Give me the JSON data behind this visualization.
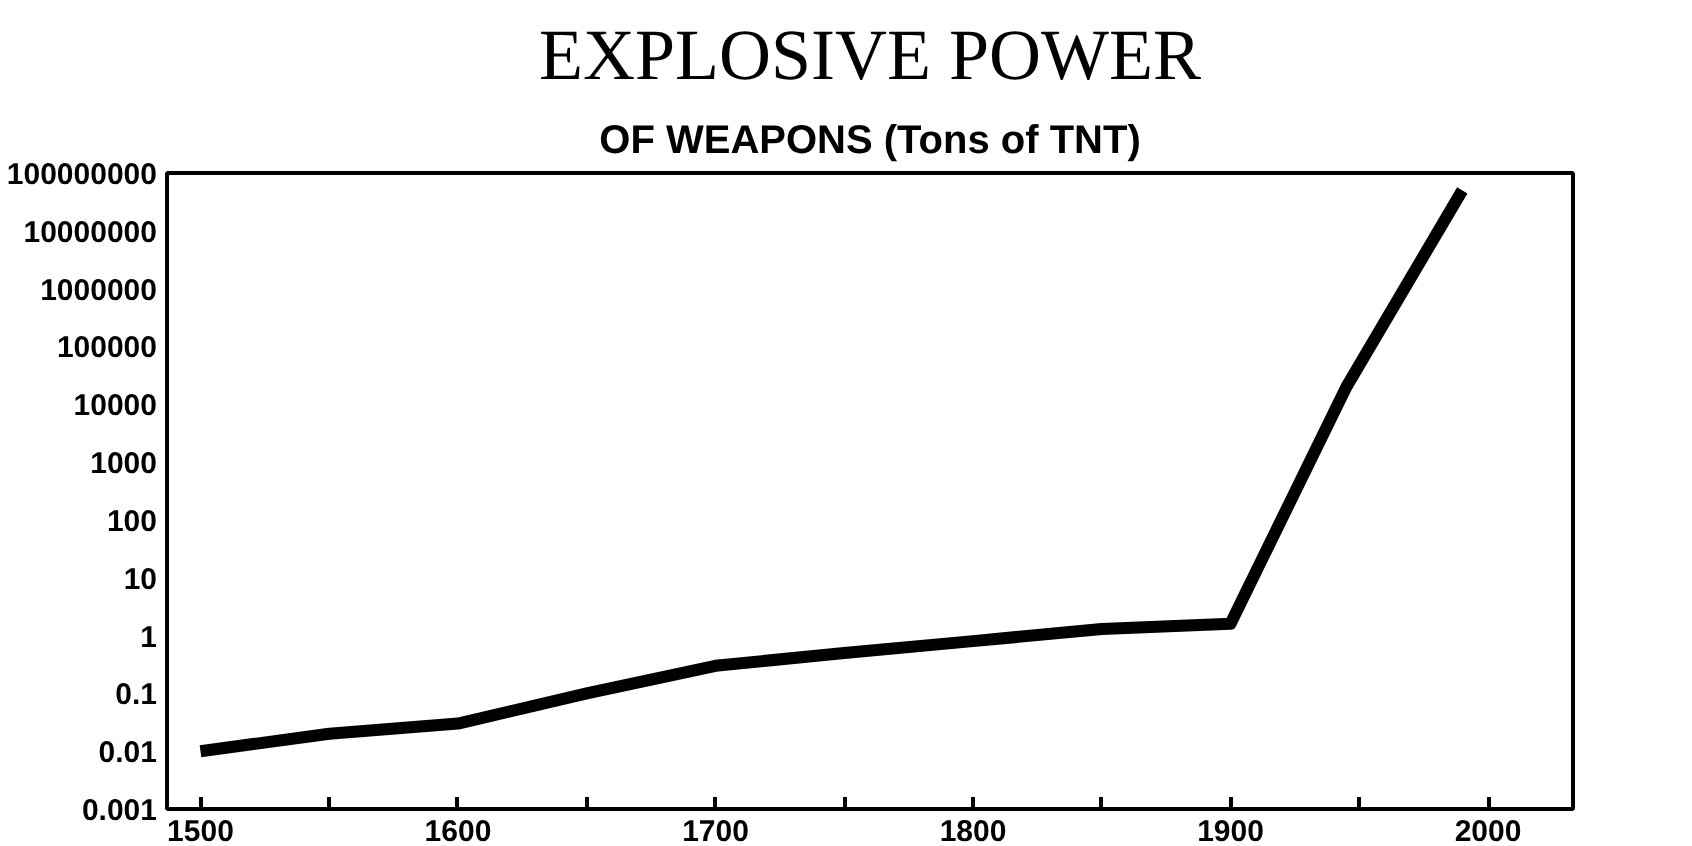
{
  "chart_data": {
    "type": "line",
    "title": "EXPLOSIVE POWER",
    "subtitle": "OF WEAPONS (Tons of TNT)",
    "x": [
      1500,
      1550,
      1600,
      1650,
      1700,
      1750,
      1800,
      1850,
      1900,
      1945,
      1990
    ],
    "series": [
      {
        "color": "#000000",
        "values": [
          0.01,
          0.02,
          0.03,
          0.1,
          0.3,
          0.5,
          0.8,
          1.3,
          1.6,
          20000,
          50000000
        ]
      }
    ],
    "log": "y",
    "grid": false,
    "marker": "none",
    "line_style": "solid",
    "xlim": [
      1487,
      2033
    ],
    "ylim": [
      0.001,
      100000000
    ],
    "xticks": [
      1500,
      {
        "value": 1550,
        "label": null
      },
      1600,
      {
        "value": 1650,
        "label": null
      },
      1700,
      {
        "value": 1750,
        "label": null
      },
      1800,
      {
        "value": 1850,
        "label": null
      },
      1900,
      {
        "value": 1950,
        "label": null
      },
      2000
    ],
    "yticks": [
      0.001,
      0.01,
      0.1,
      1,
      10,
      100,
      1000,
      10000,
      100000,
      1000000,
      10000000,
      100000000
    ]
  }
}
